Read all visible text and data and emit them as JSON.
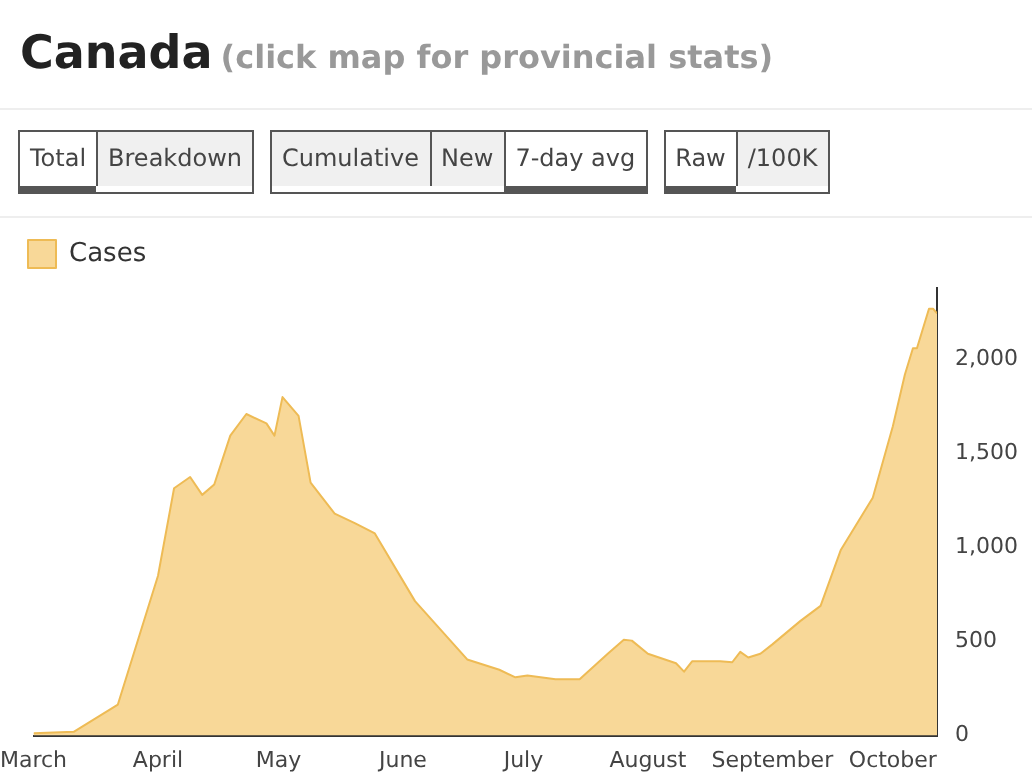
{
  "chart_data": {
    "type": "area",
    "title": "Canada",
    "subtitle": "(click map for provincial stats)",
    "annotations": [
      "Total",
      "Breakdown",
      "Cumulative",
      "New",
      "7-day avg",
      "Raw",
      "/100K"
    ],
    "xlim": [
      "--03-01",
      "--10-12"
    ],
    "xticks": [
      {
        "value": "--03-01",
        "label": "March"
      },
      {
        "value": "--04-01",
        "label": "April"
      },
      {
        "value": "--05-01",
        "label": "May"
      },
      {
        "value": "--06-01",
        "label": "June"
      },
      {
        "value": "--07-01",
        "label": "July"
      },
      {
        "value": "--08-01",
        "label": "August"
      },
      {
        "value": "--09-01",
        "label": "September"
      },
      {
        "value": "--10-01",
        "label": "October"
      }
    ],
    "ylim": [
      0,
      2380
    ],
    "yticks": [
      0,
      500,
      {
        "value": 1000,
        "label": "1,000"
      },
      {
        "value": 1500,
        "label": "1,500"
      },
      {
        "value": 2000,
        "label": "2,000"
      }
    ],
    "x": [
      "--03-01",
      "--03-11",
      "--03-22",
      "--04-01",
      "--04-05",
      "--04-09",
      "--04-12",
      "--04-15",
      "--04-19",
      "--04-23",
      "--04-28",
      "--04-30",
      "--05-02",
      "--05-06",
      "--05-09",
      "--05-15",
      "--05-20",
      "--05-25",
      "--06-04",
      "--06-17",
      "--06-25",
      "--06-29",
      "--07-02",
      "--07-09",
      "--07-15",
      "--07-22",
      "--07-26",
      "--07-28",
      "--08-01",
      "--08-08",
      "--08-10",
      "--08-12",
      "--08-19",
      "--08-22",
      "--08-24",
      "--08-26",
      "--08-29",
      "--09-01",
      "--09-08",
      "--09-13",
      "--09-18",
      "--09-26",
      "--10-01",
      "--10-04",
      "--10-06",
      "--10-07",
      "--10-10",
      "--10-11",
      "--10-12"
    ],
    "series": [
      {
        "name": "Cases",
        "color": "#f8d898",
        "values": [
          13,
          20,
          165,
          850,
          1315,
          1375,
          1280,
          1335,
          1595,
          1710,
          1660,
          1595,
          1800,
          1700,
          1345,
          1180,
          1130,
          1075,
          715,
          405,
          350,
          310,
          320,
          300,
          300,
          435,
          510,
          505,
          435,
          385,
          340,
          395,
          395,
          390,
          445,
          415,
          435,
          485,
          610,
          690,
          985,
          1265,
          1645,
          1920,
          2060,
          2060,
          2270,
          2270,
          2245
        ]
      }
    ],
    "legend": "top left",
    "grid": false
  }
}
